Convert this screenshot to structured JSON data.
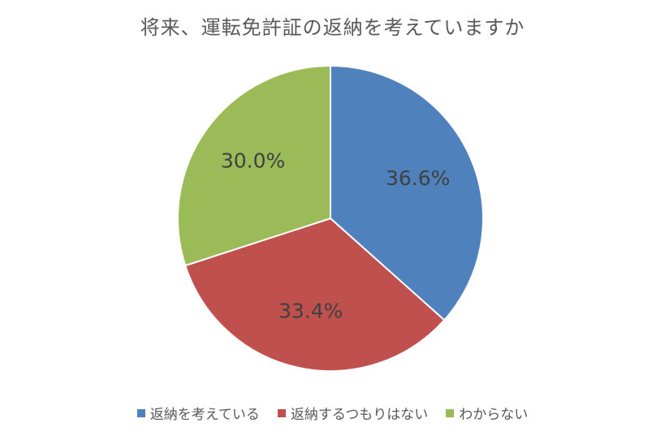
{
  "chart_data": {
    "type": "pie",
    "title": "将来、運転免許証の返納を考えていますか",
    "categories": [
      "返納を考えている",
      "返納するつもりはない",
      "わからない"
    ],
    "values": [
      36.6,
      33.4,
      30.0
    ],
    "data_labels": [
      "36.6%",
      "33.4%",
      "30.0%"
    ],
    "colors": [
      "#4f81bd",
      "#c0504d",
      "#9bbb59"
    ],
    "unit": "%",
    "legend_position": "bottom",
    "start_angle": "12 o'clock, clockwise"
  }
}
